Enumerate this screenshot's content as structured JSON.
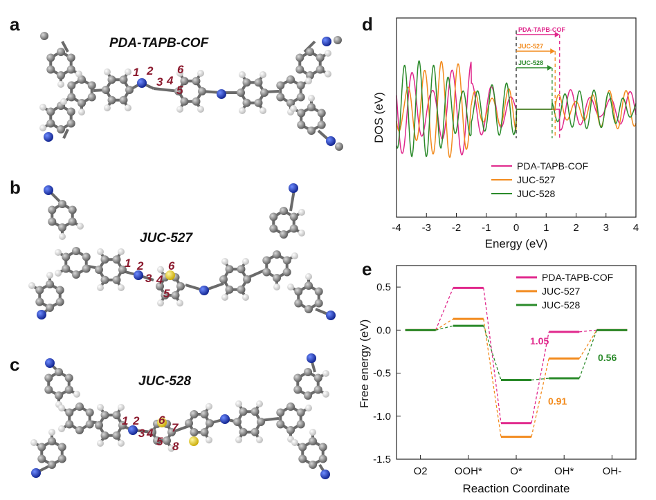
{
  "panels": [
    {
      "label": "a",
      "title": "PDA-TAPB-COF",
      "numbers": [
        "1",
        "2",
        "3",
        "4",
        "5",
        "6"
      ]
    },
    {
      "label": "b",
      "title": "JUC-527",
      "numbers": [
        "1",
        "2",
        "3",
        "4",
        "5",
        "6"
      ]
    },
    {
      "label": "c",
      "title": "JUC-528",
      "numbers": [
        "1",
        "2",
        "3",
        "4",
        "5",
        "6",
        "7",
        "8"
      ]
    }
  ],
  "colors": {
    "pda": "#e0288c",
    "juc527": "#f28a1c",
    "juc528": "#2a8a2a",
    "carbon": "#8a8a8a",
    "nitrogen": "#1f3fbf",
    "sulfur": "#e6cc2a",
    "hydrogen": "#f2f2f2"
  },
  "chart_data": [
    {
      "panel": "d",
      "type": "line",
      "xlabel": "Energy (eV)",
      "ylabel": "DOS (eV)",
      "xlim": [
        -4,
        4
      ],
      "xticks": [
        "-4",
        "-3",
        "-2",
        "-1",
        "0",
        "1",
        "2",
        "3",
        "4"
      ],
      "series": [
        {
          "name": "PDA-TAPB-COF",
          "color": "#e0288c"
        },
        {
          "name": "JUC-527",
          "color": "#f28a1c"
        },
        {
          "name": "JUC-528",
          "color": "#2a8a2a"
        }
      ],
      "gap_arrows": [
        {
          "label": "PDA-TAPB-COF",
          "from": 0,
          "to": 1.45,
          "color": "#e0288c"
        },
        {
          "label": "JUC-527",
          "from": 0,
          "to": 1.3,
          "color": "#f28a1c"
        },
        {
          "label": "JUC-528",
          "from": 0,
          "to": 1.2,
          "color": "#2a8a2a"
        }
      ],
      "legend": "lower-right"
    },
    {
      "panel": "e",
      "type": "line",
      "xlabel": "Reaction Coordinate",
      "ylabel": "Free energy (eV)",
      "ylim": [
        -1.5,
        0.75
      ],
      "yticks": [
        "0.5",
        "0.0",
        "-0.5",
        "-1.0",
        "-1.5"
      ],
      "categories": [
        "O2",
        "OOH*",
        "O*",
        "OH*",
        "OH-"
      ],
      "series": [
        {
          "name": "PDA-TAPB-COF",
          "color": "#e0288c",
          "values": [
            0.0,
            0.49,
            -1.08,
            -0.02,
            0.0
          ]
        },
        {
          "name": "JUC-527",
          "color": "#f28a1c",
          "values": [
            0.0,
            0.13,
            -1.24,
            -0.33,
            0.0
          ]
        },
        {
          "name": "JUC-528",
          "color": "#2a8a2a",
          "values": [
            0.0,
            0.05,
            -0.58,
            -0.56,
            0.0
          ]
        }
      ],
      "annotations": [
        {
          "text": "1.05",
          "color": "#e0288c"
        },
        {
          "text": "0.91",
          "color": "#f28a1c"
        },
        {
          "text": "0.56",
          "color": "#2a8a2a"
        }
      ],
      "legend": "top-right"
    }
  ]
}
